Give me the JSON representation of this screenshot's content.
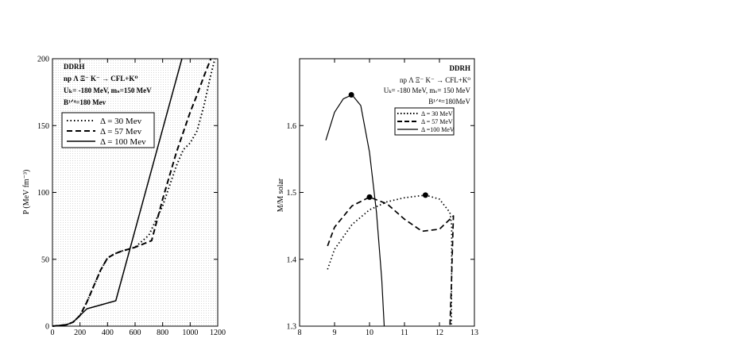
{
  "chart_data": [
    {
      "type": "line",
      "title": "",
      "xlabel": "",
      "ylabel": "P (MeV fm⁻³)",
      "xlim": [
        0,
        1200
      ],
      "ylim": [
        0,
        200
      ],
      "xticks": [
        "0",
        "200",
        "400",
        "600",
        "800",
        "1000",
        "1200"
      ],
      "yticks": [
        "0",
        "50",
        "100",
        "150",
        "200"
      ],
      "annotations": [
        "DDRH",
        "np Λ Ξ⁻ K⁻ → CFL+K⁰",
        "Uₖ= -180 MeV, mₛ=150 MeV",
        "B¹ᐟ⁴=180 Mev"
      ],
      "legend_placement": "top-left",
      "series": [
        {
          "name": "Δ = 30 Mev",
          "style": "dotted",
          "x": [
            0,
            100,
            150,
            200,
            250,
            300,
            350,
            400,
            450,
            500,
            600,
            700,
            800,
            900,
            950,
            1000,
            1050,
            1100,
            1150,
            1180
          ],
          "y": [
            0,
            1,
            3,
            8,
            18,
            30,
            42,
            51,
            54,
            56,
            59,
            68,
            90,
            120,
            132,
            137,
            146,
            165,
            188,
            200
          ]
        },
        {
          "name": "Δ = 57 Mev",
          "style": "dashed",
          "x": [
            0,
            100,
            150,
            200,
            250,
            300,
            350,
            400,
            450,
            500,
            600,
            720,
            800,
            900,
            1000,
            1050,
            1100,
            1150
          ],
          "y": [
            0,
            1,
            3,
            8,
            18,
            30,
            42,
            51,
            54,
            56,
            59,
            64,
            95,
            130,
            160,
            173,
            187,
            200
          ]
        },
        {
          "name": "Δ = 100 Mev",
          "style": "solid",
          "x": [
            0,
            100,
            150,
            200,
            250,
            460,
            940
          ],
          "y": [
            0,
            1,
            3,
            8,
            13,
            19,
            200
          ]
        }
      ]
    },
    {
      "type": "line",
      "title": "",
      "xlabel": "",
      "ylabel": "M/M solar",
      "xlim": [
        8,
        13
      ],
      "ylim": [
        1.3,
        1.7
      ],
      "xticks": [
        "8",
        "9",
        "10",
        "11",
        "12",
        "13"
      ],
      "yticks": [
        "1.3",
        "1.4",
        "1.5",
        "1.6"
      ],
      "annotations": [
        "DDRH",
        "np Λ Ξ⁻ K⁻ → CFL+K⁰",
        "Uₖ= -180 MeV, mₛ= 150 MeV",
        "B¹ᐟ⁴=180MeV"
      ],
      "legend_placement": "top-right",
      "series": [
        {
          "name": "Δ = 30 MeV",
          "style": "dotted",
          "x": [
            8.8,
            9.0,
            9.5,
            10.0,
            10.5,
            11.0,
            11.6,
            12.0,
            12.3,
            12.35,
            12.35,
            12.34
          ],
          "y": [
            1.385,
            1.415,
            1.452,
            1.474,
            1.486,
            1.492,
            1.496,
            1.49,
            1.47,
            1.45,
            1.4,
            1.3
          ],
          "marker": {
            "x": 11.6,
            "y": 1.496
          }
        },
        {
          "name": "Δ = 57 MeV",
          "style": "dashed",
          "x": [
            8.8,
            9.0,
            9.5,
            10.0,
            10.5,
            11.0,
            11.5,
            12.0,
            12.3,
            12.4,
            12.38,
            12.34,
            12.3
          ],
          "y": [
            1.42,
            1.448,
            1.48,
            1.493,
            1.483,
            1.46,
            1.442,
            1.445,
            1.46,
            1.465,
            1.43,
            1.36,
            1.3
          ],
          "marker": {
            "x": 10.0,
            "y": 1.493
          }
        },
        {
          "name": "Δ =100 MeV",
          "style": "solid",
          "x": [
            8.75,
            9.0,
            9.25,
            9.5,
            9.75,
            10.0,
            10.2,
            10.35,
            10.42
          ],
          "y": [
            1.578,
            1.62,
            1.64,
            1.646,
            1.63,
            1.56,
            1.47,
            1.37,
            1.3
          ],
          "marker": {
            "x": 9.48,
            "y": 1.646
          }
        }
      ]
    }
  ]
}
